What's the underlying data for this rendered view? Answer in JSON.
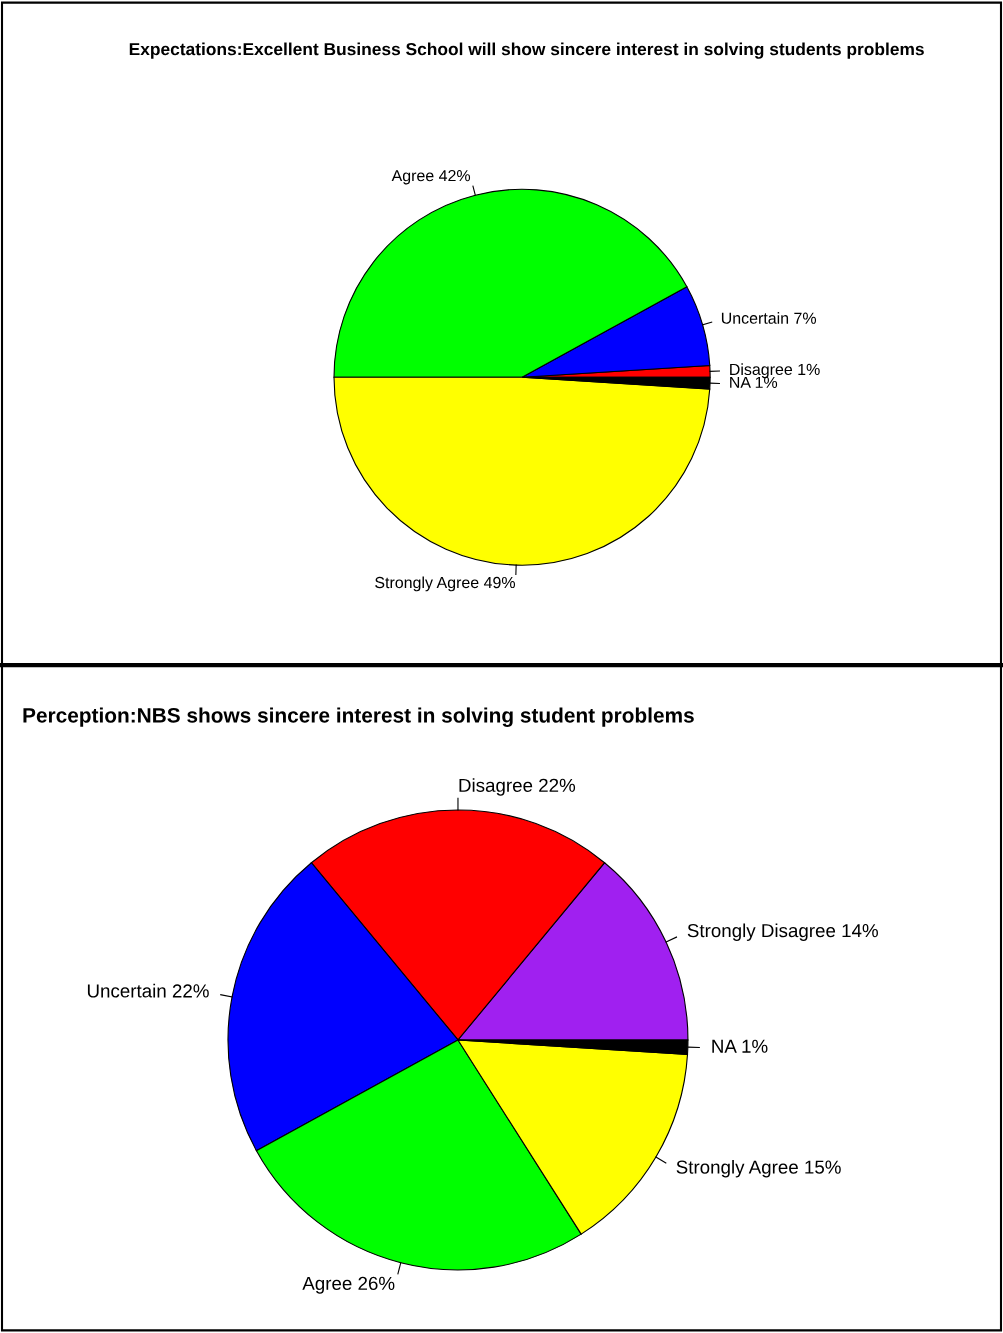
{
  "chart_data": [
    {
      "type": "pie",
      "title": "Expectations:Excellent Business School will show sincere interest in solving students problems",
      "categories": [
        "Disagree",
        "Uncertain",
        "Agree",
        "Strongly Agree",
        "NA"
      ],
      "values": [
        1,
        7,
        42,
        49,
        1
      ],
      "value_labels": [
        "1%",
        "7%",
        "42%",
        "49%",
        "1%"
      ],
      "colors": [
        "#ff0000",
        "#0000ff",
        "#00ff00",
        "#ffff00",
        "#000000"
      ]
    },
    {
      "type": "pie",
      "title": "Perception:NBS shows sincere interest in solving student problems",
      "categories": [
        "Strongly Disagree",
        "Disagree",
        "Uncertain",
        "Agree",
        "Strongly Agree",
        "NA"
      ],
      "values": [
        14,
        22,
        22,
        26,
        15,
        1
      ],
      "value_labels": [
        "14%",
        "22%",
        "22%",
        "26%",
        "15%",
        "1%"
      ],
      "colors": [
        "#a020f0",
        "#ff0000",
        "#0000ff",
        "#00ff00",
        "#ffff00",
        "#000000"
      ]
    }
  ]
}
